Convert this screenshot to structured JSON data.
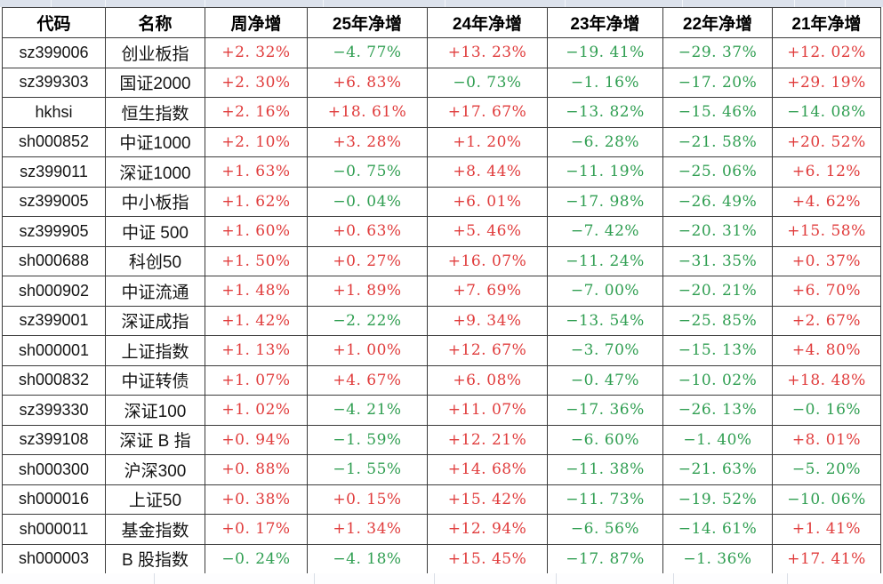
{
  "colors": {
    "positive_value": "#e03c3c",
    "negative_value": "#2f9e51",
    "grid_border": "#3b3b3b",
    "strip_top_background": "#dce2ec",
    "strip_bottom_background": "#fdfdfe"
  },
  "table": {
    "columns": [
      {
        "key": "code",
        "label": "代码"
      },
      {
        "key": "name",
        "label": "名称"
      },
      {
        "key": "week",
        "label": "周净增"
      },
      {
        "key": "y25",
        "label": "25年净增"
      },
      {
        "key": "y24",
        "label": "24年净增"
      },
      {
        "key": "y23",
        "label": "23年净增"
      },
      {
        "key": "y22",
        "label": "22年净增"
      },
      {
        "key": "y21",
        "label": "21年净增"
      }
    ],
    "rows": [
      {
        "code": "sz399006",
        "name": "创业板指",
        "week": "+2. 32%",
        "y25": "−4. 77%",
        "y24": "+13. 23%",
        "y23": "−19. 41%",
        "y22": "−29. 37%",
        "y21": "+12. 02%"
      },
      {
        "code": "sz399303",
        "name": "国证2000",
        "week": "+2. 30%",
        "y25": "+6. 83%",
        "y24": "−0. 73%",
        "y23": "−1. 16%",
        "y22": "−17. 20%",
        "y21": "+29. 19%"
      },
      {
        "code": "hkhsi",
        "name": "恒生指数",
        "week": "+2. 16%",
        "y25": "+18. 61%",
        "y24": "+17. 67%",
        "y23": "−13. 82%",
        "y22": "−15. 46%",
        "y21": "−14. 08%"
      },
      {
        "code": "sh000852",
        "name": "中证1000",
        "week": "+2. 10%",
        "y25": "+3. 28%",
        "y24": "+1. 20%",
        "y23": "−6. 28%",
        "y22": "−21. 58%",
        "y21": "+20. 52%"
      },
      {
        "code": "sz399011",
        "name": "深证1000",
        "week": "+1. 63%",
        "y25": "−0. 75%",
        "y24": "+8. 44%",
        "y23": "−11. 19%",
        "y22": "−25. 06%",
        "y21": "+6. 12%"
      },
      {
        "code": "sz399005",
        "name": "中小板指",
        "week": "+1. 62%",
        "y25": "−0. 04%",
        "y24": "+6. 01%",
        "y23": "−17. 98%",
        "y22": "−26. 49%",
        "y21": "+4. 62%"
      },
      {
        "code": "sz399905",
        "name": "中证 500",
        "week": "+1. 60%",
        "y25": "+0. 63%",
        "y24": "+5. 46%",
        "y23": "−7. 42%",
        "y22": "−20. 31%",
        "y21": "+15. 58%"
      },
      {
        "code": "sh000688",
        "name": "科创50",
        "week": "+1. 50%",
        "y25": "+0. 27%",
        "y24": "+16. 07%",
        "y23": "−11. 24%",
        "y22": "−31. 35%",
        "y21": "+0. 37%"
      },
      {
        "code": "sh000902",
        "name": "中证流通",
        "week": "+1. 48%",
        "y25": "+1. 89%",
        "y24": "+7. 69%",
        "y23": "−7. 00%",
        "y22": "−20. 21%",
        "y21": "+6. 70%"
      },
      {
        "code": "sz399001",
        "name": "深证成指",
        "week": "+1. 42%",
        "y25": "−2. 22%",
        "y24": "+9. 34%",
        "y23": "−13. 54%",
        "y22": "−25. 85%",
        "y21": "+2. 67%"
      },
      {
        "code": "sh000001",
        "name": "上证指数",
        "week": "+1. 13%",
        "y25": "+1. 00%",
        "y24": "+12. 67%",
        "y23": "−3. 70%",
        "y22": "−15. 13%",
        "y21": "+4. 80%"
      },
      {
        "code": "sh000832",
        "name": "中证转债",
        "week": "+1. 07%",
        "y25": "+4. 67%",
        "y24": "+6. 08%",
        "y23": "−0. 47%",
        "y22": "−10. 02%",
        "y21": "+18. 48%"
      },
      {
        "code": "sz399330",
        "name": "深证100",
        "week": "+1. 02%",
        "y25": "−4. 21%",
        "y24": "+11. 07%",
        "y23": "−17. 36%",
        "y22": "−26. 13%",
        "y21": "−0. 16%"
      },
      {
        "code": "sz399108",
        "name": "深证 B 指",
        "week": "+0. 94%",
        "y25": "−1. 59%",
        "y24": "+12. 21%",
        "y23": "−6. 60%",
        "y22": "−1. 40%",
        "y21": "+8. 01%"
      },
      {
        "code": "sh000300",
        "name": "沪深300",
        "week": "+0. 88%",
        "y25": "−1. 55%",
        "y24": "+14. 68%",
        "y23": "−11. 38%",
        "y22": "−21. 63%",
        "y21": "−5. 20%"
      },
      {
        "code": "sh000016",
        "name": "上证50",
        "week": "+0. 38%",
        "y25": "+0. 15%",
        "y24": "+15. 42%",
        "y23": "−11. 73%",
        "y22": "−19. 52%",
        "y21": "−10. 06%"
      },
      {
        "code": "sh000011",
        "name": "基金指数",
        "week": "+0. 17%",
        "y25": "+1. 34%",
        "y24": "+12. 94%",
        "y23": "−6. 56%",
        "y22": "−14. 61%",
        "y21": "+1. 41%"
      },
      {
        "code": "sh000003",
        "name": "B 股指数",
        "week": "−0. 24%",
        "y25": "−4. 18%",
        "y24": "+15. 45%",
        "y23": "−17. 87%",
        "y22": "−1. 36%",
        "y21": "+17. 41%"
      }
    ]
  }
}
